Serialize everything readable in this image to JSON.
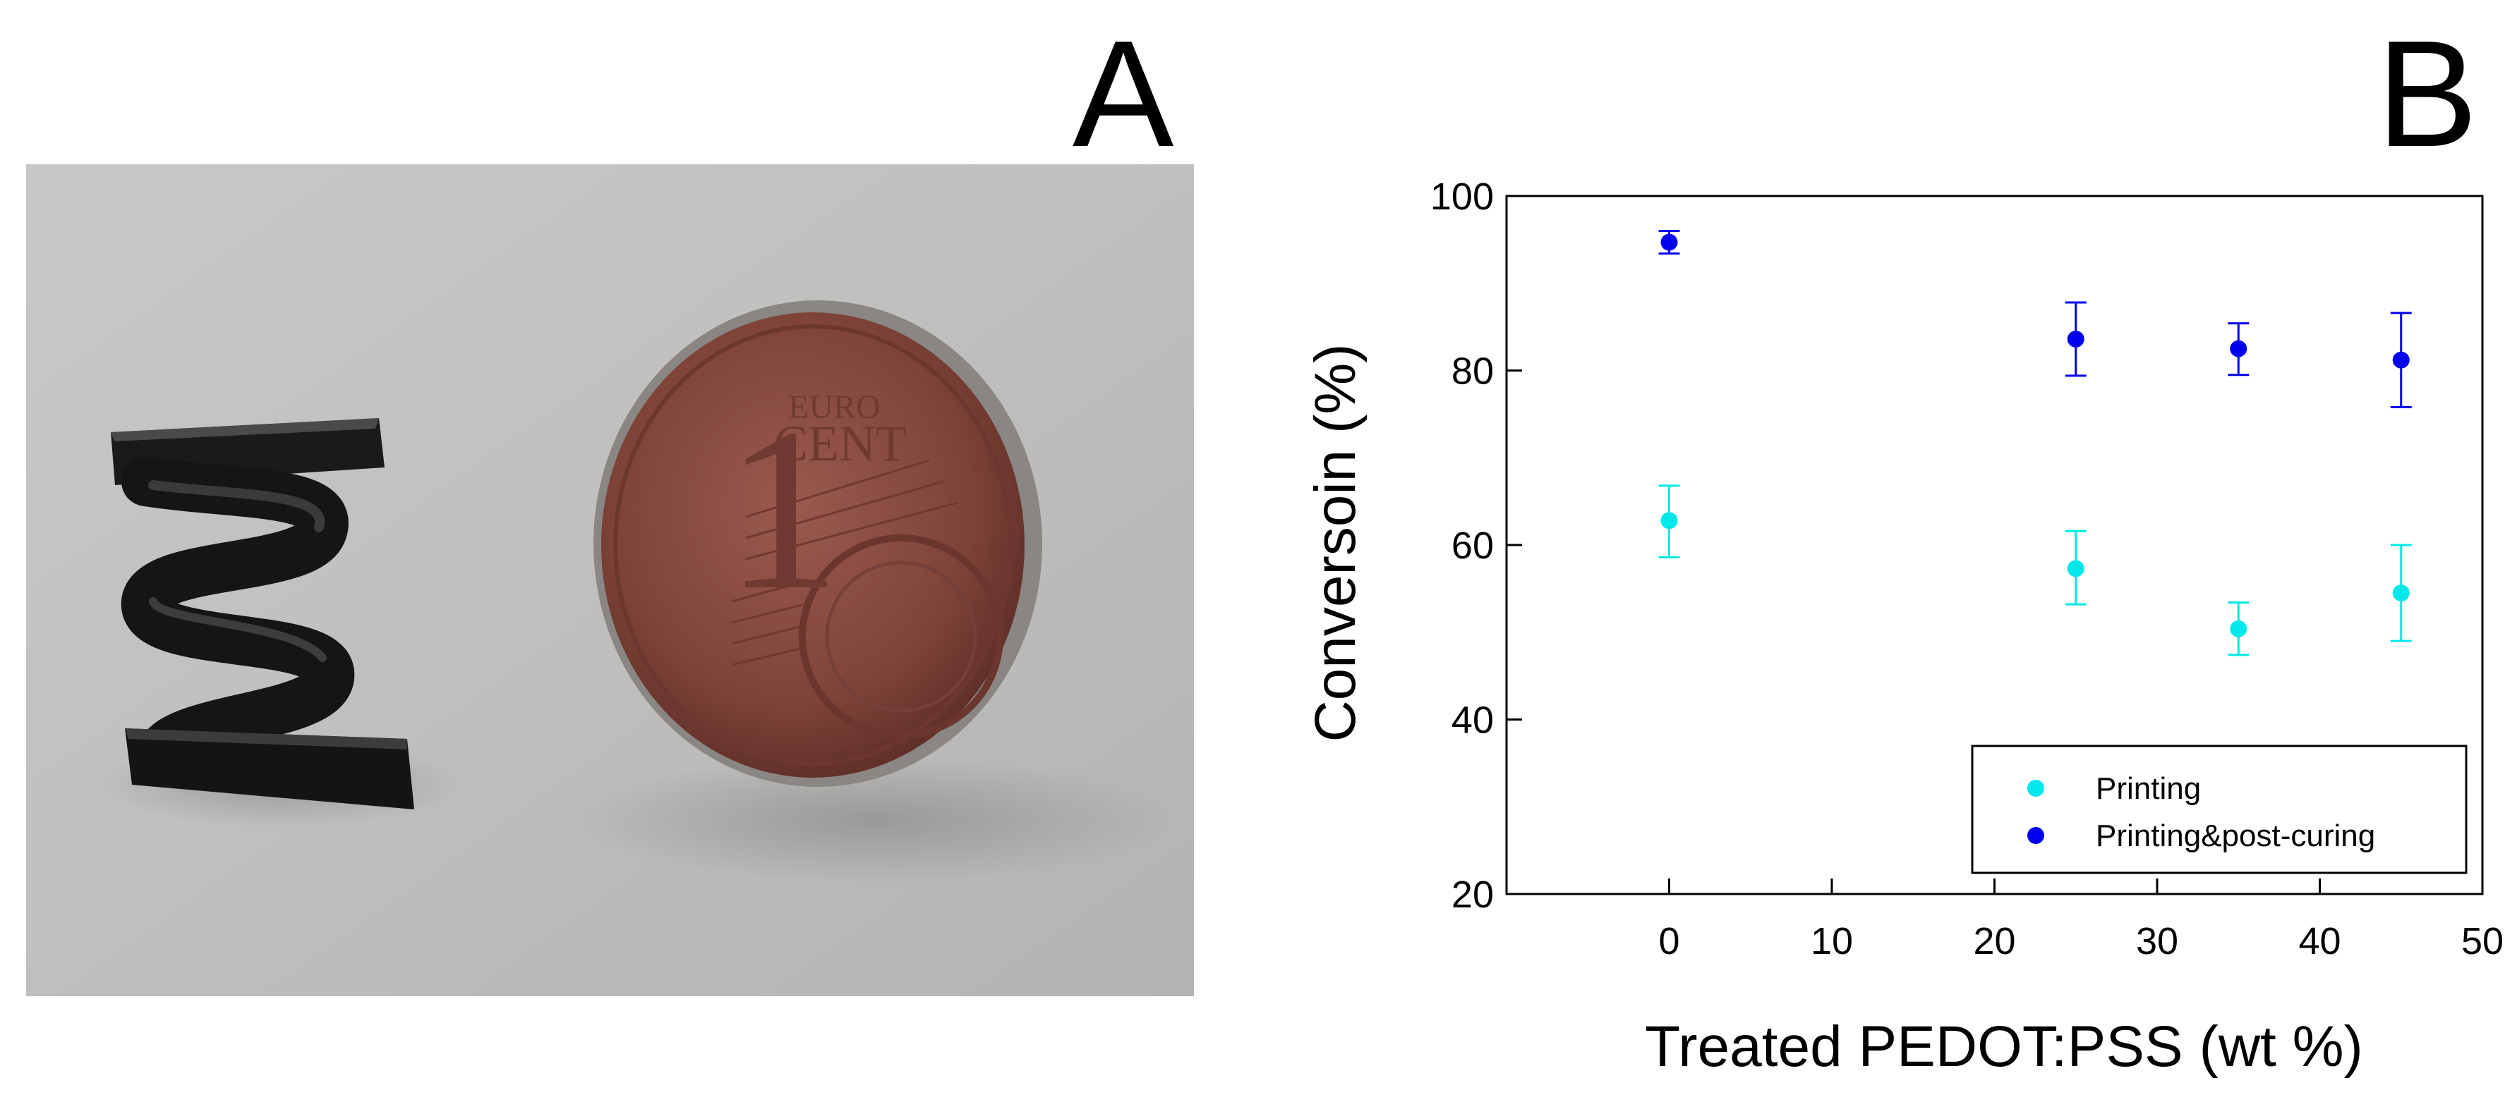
{
  "panels": {
    "a_label": "A",
    "b_label": "B"
  },
  "photo": {
    "description_icons": [
      "helical-3d-printed-spring",
      "one-euro-cent-coin"
    ],
    "coin_text": {
      "euro": "EURO",
      "cent": "CENT",
      "numeral": "1"
    }
  },
  "chart_data": {
    "type": "scatter",
    "xlabel": "Treated PEDOT:PSS (wt %)",
    "ylabel": "Conversoin (%)",
    "xlim": [
      -10,
      50
    ],
    "ylim": [
      20,
      100
    ],
    "xticks": [
      0,
      10,
      20,
      30,
      40,
      50
    ],
    "yticks": [
      20,
      40,
      60,
      80,
      100
    ],
    "legend_position": "bottom-right",
    "grid": false,
    "series": [
      {
        "name": "Printing",
        "color": "#00e8ea",
        "points": [
          {
            "x": 0,
            "y": 62.8,
            "err_low": 58.6,
            "err_high": 66.8
          },
          {
            "x": 25,
            "y": 57.3,
            "err_low": 53.2,
            "err_high": 61.6
          },
          {
            "x": 35,
            "y": 50.4,
            "err_low": 47.4,
            "err_high": 53.4
          },
          {
            "x": 45,
            "y": 54.5,
            "err_low": 49.0,
            "err_high": 60.0
          }
        ]
      },
      {
        "name": "Printing&post-curing",
        "color": "#0000ee",
        "points": [
          {
            "x": 0,
            "y": 94.7,
            "err_low": 93.4,
            "err_high": 96.0
          },
          {
            "x": 25,
            "y": 83.6,
            "err_low": 79.4,
            "err_high": 87.8
          },
          {
            "x": 35,
            "y": 82.5,
            "err_low": 79.5,
            "err_high": 85.4
          },
          {
            "x": 45,
            "y": 81.2,
            "err_low": 75.8,
            "err_high": 86.6
          }
        ]
      }
    ]
  }
}
